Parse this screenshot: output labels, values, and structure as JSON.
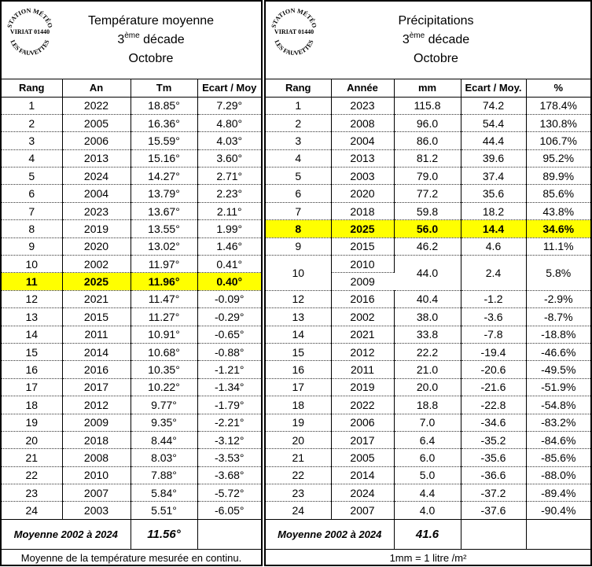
{
  "stamp": {
    "text_top": "STATION MÉTÉO",
    "text_mid": "VIRIAT 01440",
    "text_bottom": "LES FAUVETTES"
  },
  "left": {
    "title": "Température moyenne",
    "decade_num": "3",
    "decade_sup": "ème",
    "decade_word": " décade",
    "month": "Octobre",
    "headers": [
      "Rang",
      "An",
      "Tm",
      "Ecart / Moy"
    ],
    "rows": [
      [
        "1",
        "2022",
        "18.85°",
        "7.29°"
      ],
      [
        "2",
        "2005",
        "16.36°",
        "4.80°"
      ],
      [
        "3",
        "2006",
        "15.59°",
        "4.03°"
      ],
      [
        "4",
        "2013",
        "15.16°",
        "3.60°"
      ],
      [
        "5",
        "2024",
        "14.27°",
        "2.71°"
      ],
      [
        "6",
        "2004",
        "13.79°",
        "2.23°"
      ],
      [
        "7",
        "2023",
        "13.67°",
        "2.11°"
      ],
      [
        "8",
        "2019",
        "13.55°",
        "1.99°"
      ],
      [
        "9",
        "2020",
        "13.02°",
        "1.46°"
      ],
      [
        "10",
        "2002",
        "11.97°",
        "0.41°"
      ],
      [
        "11",
        "2025",
        "11.96°",
        "0.40°"
      ],
      [
        "12",
        "2021",
        "11.47°",
        "-0.09°"
      ],
      [
        "13",
        "2015",
        "11.27°",
        "-0.29°"
      ],
      [
        "14",
        "2011",
        "10.91°",
        "-0.65°"
      ],
      [
        "15",
        "2014",
        "10.68°",
        "-0.88°"
      ],
      [
        "16",
        "2016",
        "10.35°",
        "-1.21°"
      ],
      [
        "17",
        "2017",
        "10.22°",
        "-1.34°"
      ],
      [
        "18",
        "2012",
        "9.77°",
        "-1.79°"
      ],
      [
        "19",
        "2009",
        "9.35°",
        "-2.21°"
      ],
      [
        "20",
        "2018",
        "8.44°",
        "-3.12°"
      ],
      [
        "21",
        "2008",
        "8.03°",
        "-3.53°"
      ],
      [
        "22",
        "2010",
        "7.88°",
        "-3.68°"
      ],
      [
        "23",
        "2007",
        "5.84°",
        "-5.72°"
      ],
      [
        "24",
        "2003",
        "5.51°",
        "-6.05°"
      ]
    ],
    "highlight_rank": "11",
    "average_label": "Moyenne 2002 à 2024",
    "average_value": "11.56°",
    "footer": "Moyenne de la température mesurée en continu."
  },
  "right": {
    "title": "Précipitations",
    "decade_num": "3",
    "decade_sup": "ème",
    "decade_word": " décade",
    "month": "Octobre",
    "headers": [
      "Rang",
      "Année",
      "mm",
      "Ecart / Moy.",
      "%"
    ],
    "rows": [
      [
        "1",
        "2023",
        "115.8",
        "74.2",
        "178.4%"
      ],
      [
        "2",
        "2008",
        "96.0",
        "54.4",
        "130.8%"
      ],
      [
        "3",
        "2004",
        "86.0",
        "44.4",
        "106.7%"
      ],
      [
        "4",
        "2013",
        "81.2",
        "39.6",
        "95.2%"
      ],
      [
        "5",
        "2003",
        "79.0",
        "37.4",
        "89.9%"
      ],
      [
        "6",
        "2020",
        "77.2",
        "35.6",
        "85.6%"
      ],
      [
        "7",
        "2018",
        "59.8",
        "18.2",
        "43.8%"
      ],
      [
        "8",
        "2025",
        "56.0",
        "14.4",
        "34.6%"
      ],
      [
        "9",
        "2015",
        "46.2",
        "4.6",
        "11.1%"
      ],
      [
        "10",
        "2010",
        "44.0",
        "2.4",
        "5.8%"
      ],
      [
        "",
        "2009",
        "",
        "",
        ""
      ],
      [
        "12",
        "2016",
        "40.4",
        "-1.2",
        "-2.9%"
      ],
      [
        "13",
        "2002",
        "38.0",
        "-3.6",
        "-8.7%"
      ],
      [
        "14",
        "2021",
        "33.8",
        "-7.8",
        "-18.8%"
      ],
      [
        "15",
        "2012",
        "22.2",
        "-19.4",
        "-46.6%"
      ],
      [
        "16",
        "2011",
        "21.0",
        "-20.6",
        "-49.5%"
      ],
      [
        "17",
        "2019",
        "20.0",
        "-21.6",
        "-51.9%"
      ],
      [
        "18",
        "2022",
        "18.8",
        "-22.8",
        "-54.8%"
      ],
      [
        "19",
        "2006",
        "7.0",
        "-34.6",
        "-83.2%"
      ],
      [
        "20",
        "2017",
        "6.4",
        "-35.2",
        "-84.6%"
      ],
      [
        "21",
        "2005",
        "6.0",
        "-35.6",
        "-85.6%"
      ],
      [
        "22",
        "2014",
        "5.0",
        "-36.6",
        "-88.0%"
      ],
      [
        "23",
        "2024",
        "4.4",
        "-37.2",
        "-89.4%"
      ],
      [
        "24",
        "2007",
        "4.0",
        "-37.6",
        "-90.4%"
      ]
    ],
    "highlight_rank": "8",
    "average_label": "Moyenne 2002 à 2024",
    "average_value": "41.6",
    "footer": "1mm = 1 litre /m²"
  },
  "colors": {
    "highlight": "#ffff00"
  }
}
